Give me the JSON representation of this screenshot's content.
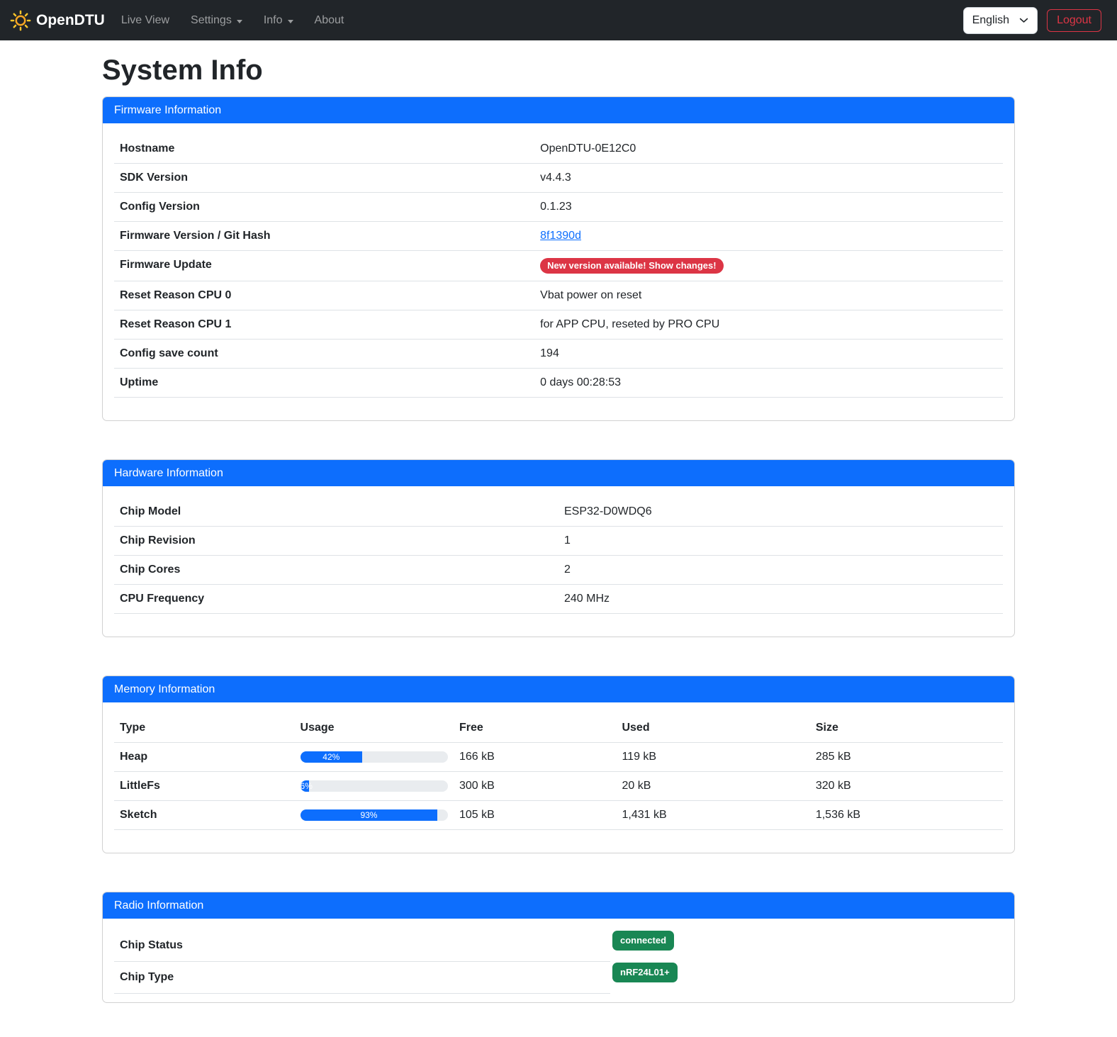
{
  "navbar": {
    "brand": "OpenDTU",
    "items": [
      {
        "label": "Live View",
        "dropdown": false
      },
      {
        "label": "Settings",
        "dropdown": true
      },
      {
        "label": "Info",
        "dropdown": true
      },
      {
        "label": "About",
        "dropdown": false
      }
    ],
    "language": {
      "selected": "English"
    },
    "logout_label": "Logout"
  },
  "page": {
    "title": "System Info"
  },
  "colors": {
    "primary": "#0d6efd",
    "navbar_bg": "#212529",
    "danger": "#dc3545",
    "success": "#198754",
    "progress_track": "#e9ecef",
    "table_border": "#dee2e6",
    "brand_icon": "#f5a623"
  },
  "cards": {
    "firmware": {
      "title": "Firmware Information",
      "rows": [
        {
          "label": "Hostname",
          "value": "OpenDTU-0E12C0"
        },
        {
          "label": "SDK Version",
          "value": "v4.4.3"
        },
        {
          "label": "Config Version",
          "value": "0.1.23"
        },
        {
          "label": "Firmware Version / Git Hash",
          "value": "8f1390d"
        },
        {
          "label": "Firmware Update",
          "value": "New version available! Show changes!"
        },
        {
          "label": "Reset Reason CPU 0",
          "value": "Vbat power on reset"
        },
        {
          "label": "Reset Reason CPU 1",
          "value": "for APP CPU, reseted by PRO CPU"
        },
        {
          "label": "Config save count",
          "value": "194"
        },
        {
          "label": "Uptime",
          "value": "0 days 00:28:53"
        }
      ]
    },
    "hardware": {
      "title": "Hardware Information",
      "rows": [
        {
          "label": "Chip Model",
          "value": "ESP32-D0WDQ6"
        },
        {
          "label": "Chip Revision",
          "value": "1"
        },
        {
          "label": "Chip Cores",
          "value": "2"
        },
        {
          "label": "CPU Frequency",
          "value": "240 MHz"
        }
      ]
    },
    "memory": {
      "title": "Memory Information",
      "columns": [
        "Type",
        "Usage",
        "Free",
        "Used",
        "Size"
      ],
      "rows": [
        {
          "type": "Heap",
          "usage_pct": 42,
          "usage_label": "42%",
          "free": "166 kB",
          "used": "119 kB",
          "size": "285 kB"
        },
        {
          "type": "LittleFs",
          "usage_pct": 6,
          "usage_label": "6%",
          "free": "300 kB",
          "used": "20 kB",
          "size": "320 kB"
        },
        {
          "type": "Sketch",
          "usage_pct": 93,
          "usage_label": "93%",
          "free": "105 kB",
          "used": "1,431 kB",
          "size": "1,536 kB"
        }
      ]
    },
    "radio": {
      "title": "Radio Information",
      "rows": [
        {
          "label": "Chip Status",
          "badge": "connected"
        },
        {
          "label": "Chip Type",
          "badge": "nRF24L01+"
        }
      ]
    }
  }
}
